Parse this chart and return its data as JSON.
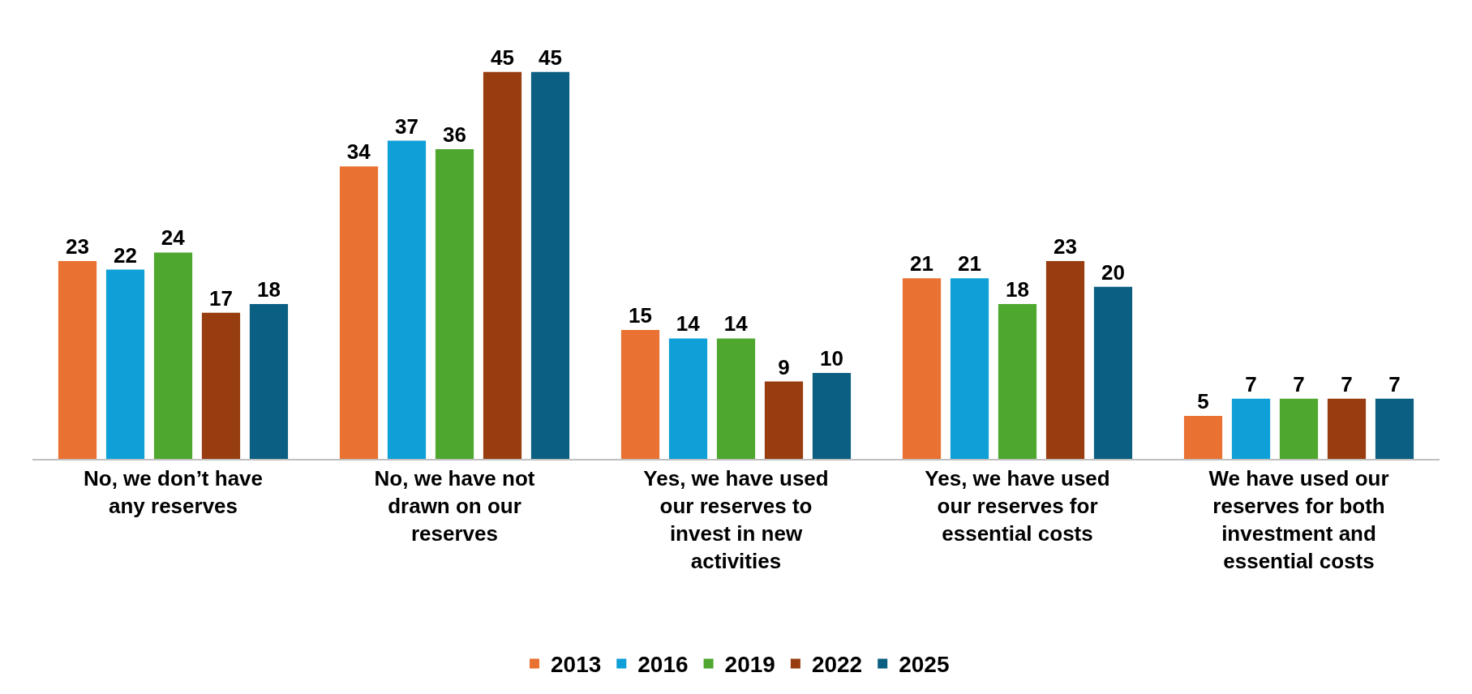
{
  "chart_data": {
    "type": "bar",
    "categories": [
      "No, we don’t have any reserves",
      "No, we have not drawn on our reserves",
      "Yes, we have used our reserves to invest in new activities",
      "Yes, we have used our reserves for essential costs",
      "We have used our reserves for both investment and essential costs"
    ],
    "series": [
      {
        "name": "2013",
        "color": "#e97132",
        "values": [
          23,
          34,
          15,
          21,
          5
        ]
      },
      {
        "name": "2016",
        "color": "#0fa0d8",
        "values": [
          22,
          37,
          14,
          21,
          7
        ]
      },
      {
        "name": "2019",
        "color": "#4ea72e",
        "values": [
          24,
          36,
          14,
          18,
          7
        ]
      },
      {
        "name": "2022",
        "color": "#973d10",
        "values": [
          17,
          45,
          9,
          23,
          7
        ]
      },
      {
        "name": "2025",
        "color": "#0b5f82",
        "values": [
          18,
          45,
          10,
          20,
          7
        ]
      }
    ],
    "data_labels": true,
    "legend": "bottom"
  }
}
